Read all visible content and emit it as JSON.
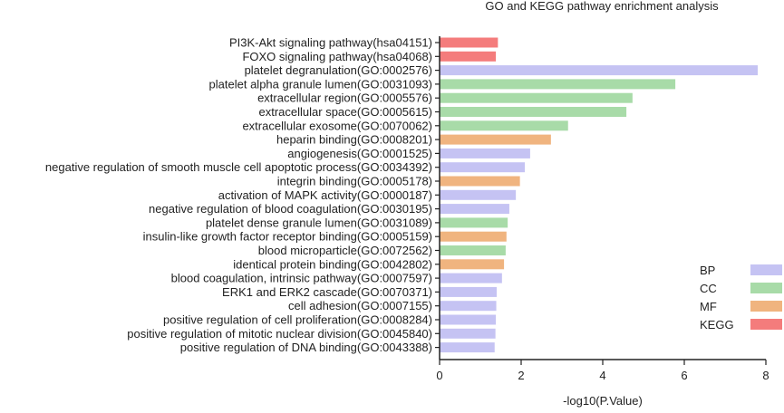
{
  "chart_data": {
    "type": "bar",
    "orientation": "horizontal",
    "title": "GO and KEGG pathway enrichment analysis",
    "xlabel": "-log10(P.Value)",
    "ylabel": "",
    "xlim": [
      0,
      8
    ],
    "xticks": [
      0,
      2,
      4,
      6,
      8
    ],
    "grid": false,
    "legend_position": "right",
    "legend": [
      {
        "name": "BP",
        "color": "#c5c3f3"
      },
      {
        "name": "CC",
        "color": "#a8dba8"
      },
      {
        "name": "MF",
        "color": "#f0b47f"
      },
      {
        "name": "KEGG",
        "color": "#f47c7c"
      }
    ],
    "bars": [
      {
        "label": "PI3K-Akt signaling pathway(hsa04151)",
        "value": 1.43,
        "category": "KEGG"
      },
      {
        "label": "FOXO signaling pathway(hsa04068)",
        "value": 1.38,
        "category": "KEGG"
      },
      {
        "label": "platelet degranulation(GO:0002576)",
        "value": 7.8,
        "category": "BP"
      },
      {
        "label": "platelet alpha granule lumen(GO:0031093)",
        "value": 5.78,
        "category": "CC"
      },
      {
        "label": "extracellular region(GO:0005576)",
        "value": 4.73,
        "category": "CC"
      },
      {
        "label": "extracellular space(GO:0005615)",
        "value": 4.58,
        "category": "CC"
      },
      {
        "label": "extracellular exosome(GO:0070062)",
        "value": 3.15,
        "category": "CC"
      },
      {
        "label": "heparin binding(GO:0008201)",
        "value": 2.73,
        "category": "MF"
      },
      {
        "label": "angiogenesis(GO:0001525)",
        "value": 2.22,
        "category": "BP"
      },
      {
        "label": "negative regulation of smooth muscle cell apoptotic process(GO:0034392)",
        "value": 2.09,
        "category": "BP"
      },
      {
        "label": "integrin binding(GO:0005178)",
        "value": 1.97,
        "category": "MF"
      },
      {
        "label": "activation of MAPK activity(GO:0000187)",
        "value": 1.87,
        "category": "BP"
      },
      {
        "label": "negative regulation of blood coagulation(GO:0030195)",
        "value": 1.71,
        "category": "BP"
      },
      {
        "label": "platelet dense granule lumen(GO:0031089)",
        "value": 1.67,
        "category": "CC"
      },
      {
        "label": "insulin-like growth factor receptor binding(GO:0005159)",
        "value": 1.64,
        "category": "MF"
      },
      {
        "label": "blood microparticle(GO:0072562)",
        "value": 1.62,
        "category": "CC"
      },
      {
        "label": "identical protein binding(GO:0042802)",
        "value": 1.58,
        "category": "MF"
      },
      {
        "label": "blood coagulation, intrinsic pathway(GO:0007597)",
        "value": 1.53,
        "category": "BP"
      },
      {
        "label": "ERK1 and ERK2 cascade(GO:0070371)",
        "value": 1.4,
        "category": "BP"
      },
      {
        "label": "cell adhesion(GO:0007155)",
        "value": 1.39,
        "category": "BP"
      },
      {
        "label": "positive regulation of cell proliferation(GO:0008284)",
        "value": 1.38,
        "category": "BP"
      },
      {
        "label": "positive regulation of mitotic nuclear division(GO:0045840)",
        "value": 1.37,
        "category": "BP"
      },
      {
        "label": "positive regulation of DNA binding(GO:0043388)",
        "value": 1.35,
        "category": "BP"
      }
    ]
  }
}
